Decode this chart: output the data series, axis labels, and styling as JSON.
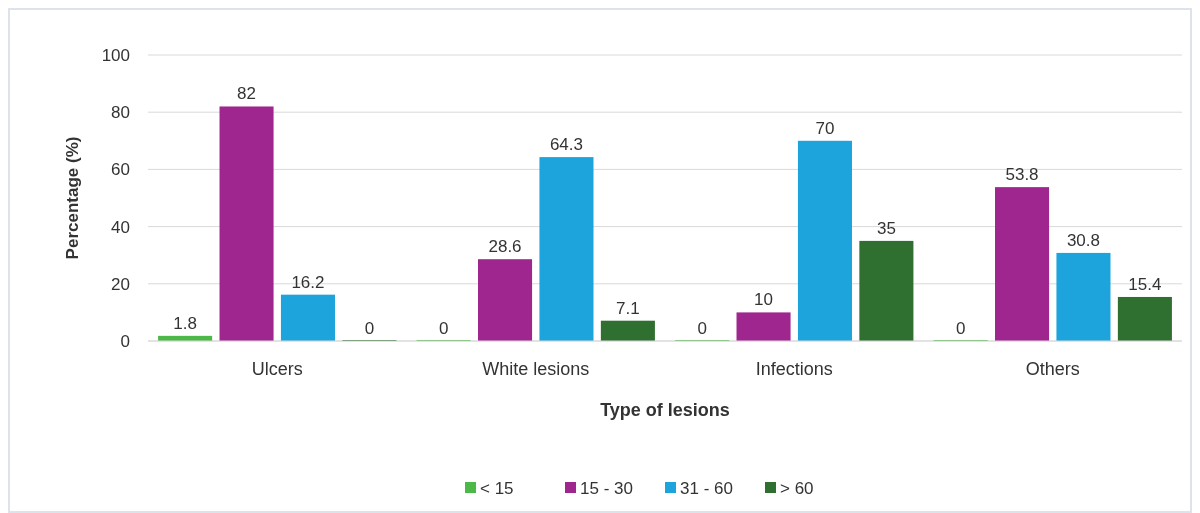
{
  "chart_data": {
    "type": "bar",
    "xlabel": "Type of lesions",
    "ylabel": "Percentage (%)",
    "categories": [
      "Ulcers",
      "White lesions",
      "Infections",
      "Others"
    ],
    "series": [
      {
        "name": "< 15",
        "color": "#4cb848",
        "values": [
          1.8,
          0,
          0,
          0
        ]
      },
      {
        "name": "15 - 30",
        "color": "#a0268f",
        "values": [
          82,
          28.6,
          10,
          53.8
        ]
      },
      {
        "name": "31 - 60",
        "color": "#1ea4dc",
        "values": [
          16.2,
          64.3,
          70,
          30.8
        ]
      },
      {
        "name": "> 60",
        "color": "#2f6f30",
        "values": [
          0,
          7.1,
          35,
          15.4
        ]
      }
    ],
    "ylim": [
      0,
      100
    ],
    "yticks": [
      0,
      20,
      40,
      60,
      80,
      100
    ],
    "grid": "y",
    "legend": "bottom",
    "data_labels": true
  }
}
